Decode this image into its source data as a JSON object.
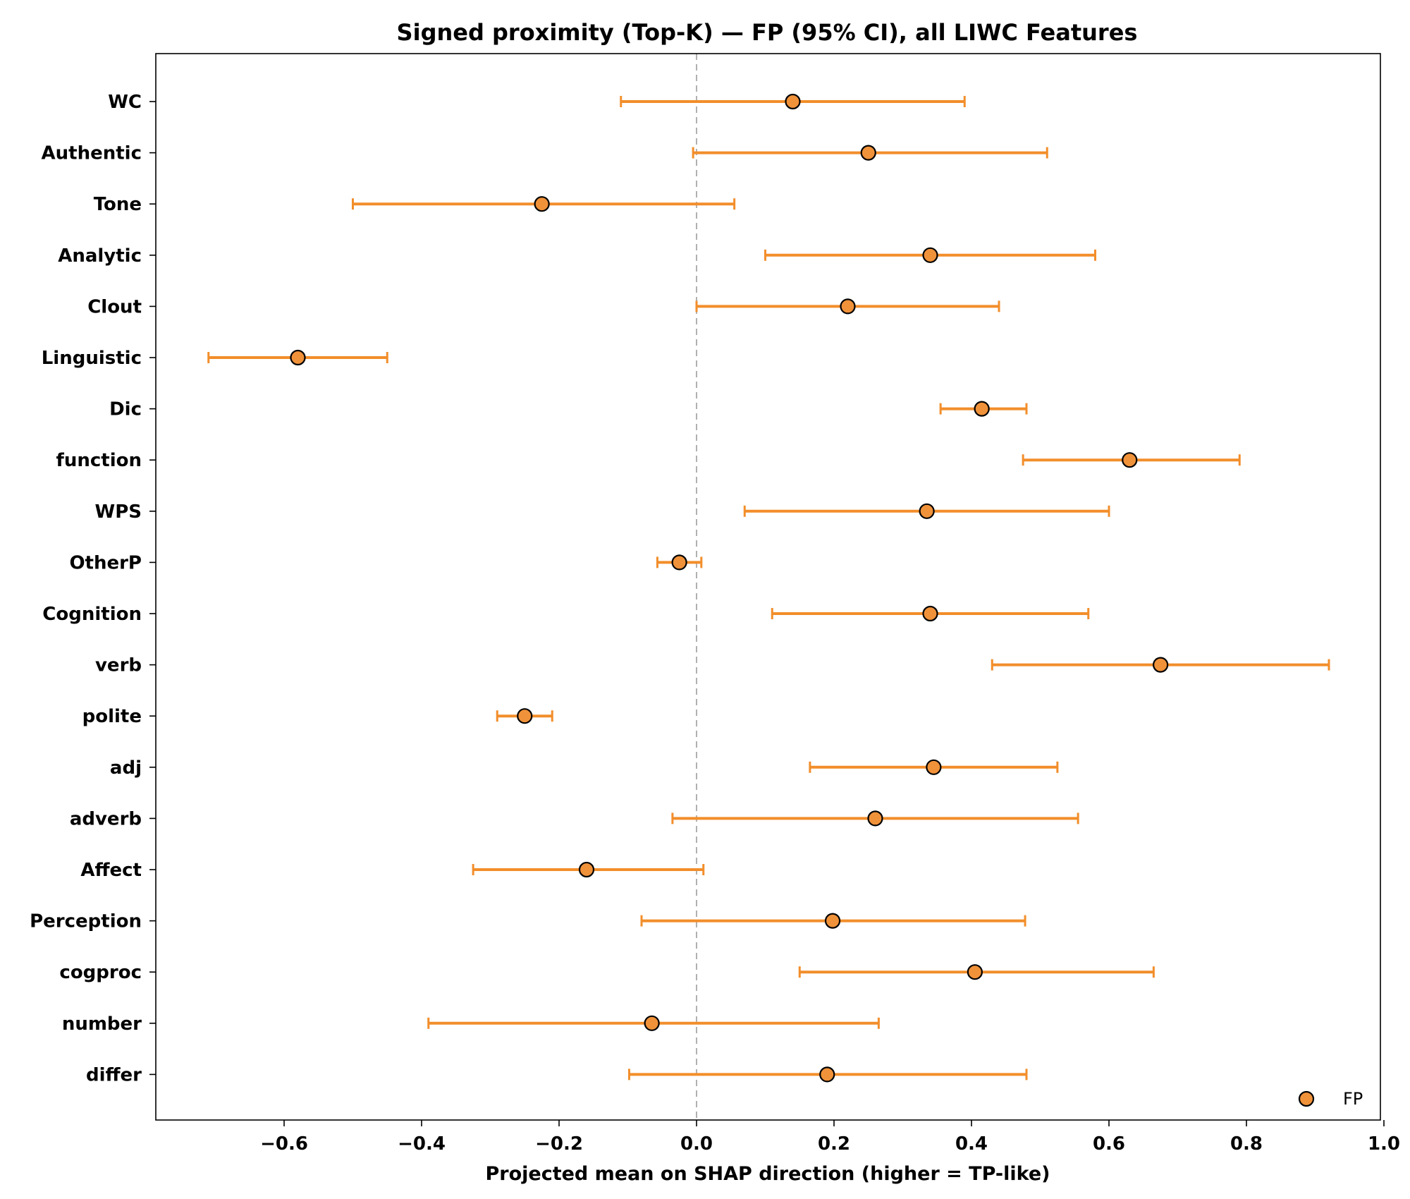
{
  "chart_data": {
    "type": "scatter",
    "subtype": "point-with-confidence-interval",
    "title": "Signed proximity (Top-K) — FP (95% CI), all LIWC Features",
    "xlabel": "Projected mean on SHAP direction (higher = TP-like)",
    "ylabel": "",
    "xlim": [
      -0.79,
      1.0
    ],
    "xticks": [
      -0.6,
      -0.4,
      -0.2,
      0.0,
      0.2,
      0.4,
      0.6,
      0.8,
      1.0
    ],
    "xtick_labels": [
      "−0.6",
      "−0.4",
      "−0.2",
      "0.0",
      "0.2",
      "0.4",
      "0.6",
      "0.8",
      "1.0"
    ],
    "reference_line": {
      "x": 0.0,
      "style": "dashed",
      "color": "#b0b0b0"
    },
    "grid": false,
    "legend_position": "bottom-right",
    "categories": [
      "WC",
      "Authentic",
      "Tone",
      "Analytic",
      "Clout",
      "Linguistic",
      "Dic",
      "function",
      "WPS",
      "OtherP",
      "Cognition",
      "verb",
      "polite",
      "adj",
      "adverb",
      "Affect",
      "Perception",
      "cogproc",
      "number",
      "differ"
    ],
    "series": [
      {
        "name": "FP",
        "color": "#f28e2b",
        "marker_face": "#f0923a",
        "marker_edge": "#000000",
        "points": [
          {
            "label": "WC",
            "mean": 0.14,
            "lo": -0.11,
            "hi": 0.39
          },
          {
            "label": "Authentic",
            "mean": 0.25,
            "lo": -0.005,
            "hi": 0.51
          },
          {
            "label": "Tone",
            "mean": -0.225,
            "lo": -0.5,
            "hi": 0.055
          },
          {
            "label": "Analytic",
            "mean": 0.34,
            "lo": 0.1,
            "hi": 0.58
          },
          {
            "label": "Clout",
            "mean": 0.22,
            "lo": 0.0,
            "hi": 0.44
          },
          {
            "label": "Linguistic",
            "mean": -0.58,
            "lo": -0.71,
            "hi": -0.45
          },
          {
            "label": "Dic",
            "mean": 0.415,
            "lo": 0.355,
            "hi": 0.48
          },
          {
            "label": "function",
            "mean": 0.63,
            "lo": 0.475,
            "hi": 0.79
          },
          {
            "label": "WPS",
            "mean": 0.335,
            "lo": 0.07,
            "hi": 0.6
          },
          {
            "label": "OtherP",
            "mean": -0.025,
            "lo": -0.057,
            "hi": 0.007
          },
          {
            "label": "Cognition",
            "mean": 0.34,
            "lo": 0.11,
            "hi": 0.57
          },
          {
            "label": "verb",
            "mean": 0.675,
            "lo": 0.43,
            "hi": 0.92
          },
          {
            "label": "polite",
            "mean": -0.25,
            "lo": -0.29,
            "hi": -0.21
          },
          {
            "label": "adj",
            "mean": 0.345,
            "lo": 0.165,
            "hi": 0.525
          },
          {
            "label": "adverb",
            "mean": 0.26,
            "lo": -0.035,
            "hi": 0.555
          },
          {
            "label": "Affect",
            "mean": -0.16,
            "lo": -0.325,
            "hi": 0.01
          },
          {
            "label": "Perception",
            "mean": 0.198,
            "lo": -0.08,
            "hi": 0.478
          },
          {
            "label": "cogproc",
            "mean": 0.405,
            "lo": 0.15,
            "hi": 0.665
          },
          {
            "label": "number",
            "mean": -0.065,
            "lo": -0.39,
            "hi": 0.265
          },
          {
            "label": "differ",
            "mean": 0.19,
            "lo": -0.098,
            "hi": 0.48
          }
        ]
      }
    ]
  }
}
